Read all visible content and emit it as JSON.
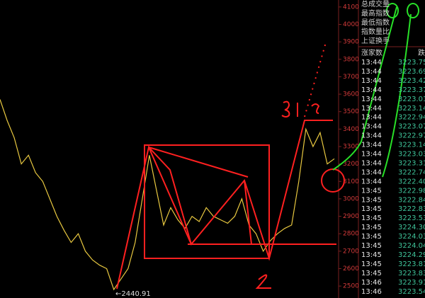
{
  "chart_data": {
    "type": "line",
    "categories": [
      null,
      null,
      null,
      null,
      null,
      null,
      null,
      null,
      null,
      null,
      null,
      null,
      null,
      null,
      null,
      null,
      null,
      null,
      null,
      null,
      null,
      null,
      null,
      null,
      null,
      null,
      null,
      null,
      null,
      null,
      null,
      null,
      null,
      null,
      null,
      null,
      null,
      null,
      null,
      null,
      null,
      null,
      null,
      null,
      null,
      null,
      null,
      null
    ],
    "values": [
      3570,
      3450,
      3350,
      3200,
      3250,
      3150,
      3100,
      3000,
      2900,
      2820,
      2750,
      2800,
      2700,
      2650,
      2620,
      2600,
      2480,
      2540,
      2600,
      2750,
      3000,
      3250,
      3050,
      2850,
      2950,
      2880,
      2830,
      2900,
      2870,
      2950,
      2900,
      2880,
      2860,
      2900,
      3000,
      2850,
      2800,
      2700,
      2760,
      2800,
      2830,
      2850,
      3100,
      3400,
      3300,
      3380,
      3200,
      3230
    ],
    "color": "#e8c840",
    "ylim": [
      2460,
      4140
    ],
    "yticks": [
      2500,
      2600,
      2700,
      2800,
      2900,
      3000,
      3100,
      3200,
      3300,
      3400,
      3500,
      3600,
      3700,
      3800,
      3900,
      4000,
      4100
    ],
    "annotation": "←2440.91"
  },
  "side_panel": {
    "labels": [
      "总成交量",
      "最高指数",
      "最低指数",
      "指数量比",
      "上证换手"
    ],
    "header": [
      "涨家数",
      "跌"
    ],
    "trades": [
      {
        "time": "13:44",
        "price": "3223.75"
      },
      {
        "time": "13:44",
        "price": "3223.69"
      },
      {
        "time": "13:44",
        "price": "3223.42"
      },
      {
        "time": "13:44",
        "price": "3223.37"
      },
      {
        "time": "13:44",
        "price": "3223.01"
      },
      {
        "time": "13:44",
        "price": "3223.14"
      },
      {
        "time": "13:44",
        "price": "3222.94"
      },
      {
        "time": "13:44",
        "price": "3223.07"
      },
      {
        "time": "13:44",
        "price": "3222.97"
      },
      {
        "time": "13:44",
        "price": "3223.14"
      },
      {
        "time": "13:44",
        "price": "3223.03"
      },
      {
        "time": "13:44",
        "price": "3223.31"
      },
      {
        "time": "13:44",
        "price": "3222.74"
      },
      {
        "time": "13:44",
        "price": "3222.40"
      },
      {
        "time": "13:45",
        "price": "3222.98"
      },
      {
        "time": "13:45",
        "price": "3222.84"
      },
      {
        "time": "13:45",
        "price": "3222.83"
      },
      {
        "time": "13:45",
        "price": "3223.53"
      },
      {
        "time": "13:45",
        "price": "3224.30"
      },
      {
        "time": "13:45",
        "price": "3224.03"
      },
      {
        "time": "13:45",
        "price": "3224.04"
      },
      {
        "time": "13:45",
        "price": "3224.29"
      },
      {
        "time": "13:45",
        "price": "3223.81"
      },
      {
        "time": "13:45",
        "price": "3223.83"
      },
      {
        "time": "13:46",
        "price": "3223.91"
      },
      {
        "time": "13:46",
        "price": "3223.54"
      }
    ]
  }
}
